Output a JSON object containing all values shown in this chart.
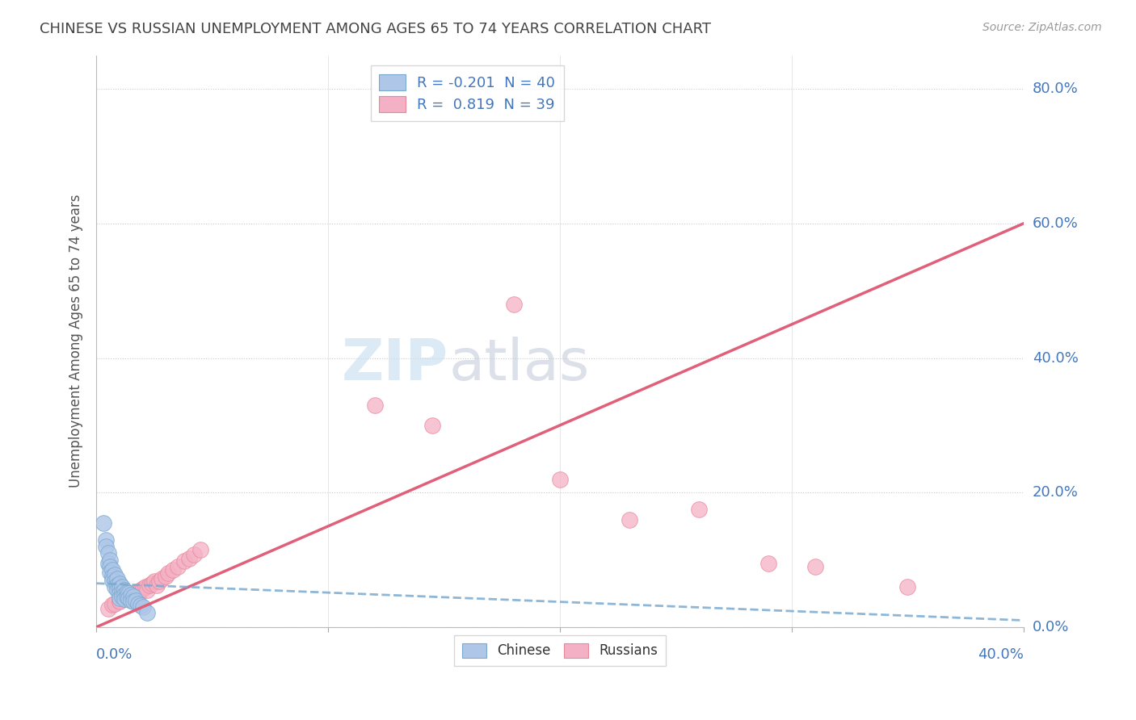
{
  "title": "CHINESE VS RUSSIAN UNEMPLOYMENT AMONG AGES 65 TO 74 YEARS CORRELATION CHART",
  "source": "Source: ZipAtlas.com",
  "ylabel": "Unemployment Among Ages 65 to 74 years",
  "xlim": [
    0.0,
    0.4
  ],
  "ylim": [
    0.0,
    0.85
  ],
  "ytick_labels": [
    "0.0%",
    "20.0%",
    "40.0%",
    "60.0%",
    "80.0%"
  ],
  "ytick_values": [
    0.0,
    0.2,
    0.4,
    0.6,
    0.8
  ],
  "chinese_R": -0.201,
  "chinese_N": 40,
  "russian_R": 0.819,
  "russian_N": 39,
  "chinese_color": "#aec6e8",
  "russian_color": "#f4b0c5",
  "chinese_edge_color": "#7aaad0",
  "russian_edge_color": "#e8889a",
  "chinese_line_color": "#7aaad0",
  "russian_line_color": "#e0607a",
  "title_color": "#444444",
  "label_color": "#4477bb",
  "watermark_zip_color": "#c8ddf0",
  "watermark_atlas_color": "#c8c8d8",
  "chinese_x": [
    0.003,
    0.004,
    0.004,
    0.005,
    0.005,
    0.006,
    0.006,
    0.006,
    0.007,
    0.007,
    0.007,
    0.008,
    0.008,
    0.008,
    0.009,
    0.009,
    0.009,
    0.01,
    0.01,
    0.01,
    0.01,
    0.011,
    0.011,
    0.011,
    0.012,
    0.012,
    0.012,
    0.013,
    0.013,
    0.014,
    0.014,
    0.015,
    0.015,
    0.016,
    0.016,
    0.017,
    0.018,
    0.019,
    0.02,
    0.022
  ],
  "chinese_y": [
    0.155,
    0.13,
    0.12,
    0.11,
    0.095,
    0.1,
    0.09,
    0.082,
    0.085,
    0.075,
    0.07,
    0.078,
    0.068,
    0.06,
    0.072,
    0.062,
    0.055,
    0.065,
    0.058,
    0.05,
    0.043,
    0.06,
    0.052,
    0.045,
    0.055,
    0.048,
    0.042,
    0.052,
    0.045,
    0.05,
    0.043,
    0.048,
    0.04,
    0.045,
    0.038,
    0.04,
    0.035,
    0.032,
    0.03,
    0.022
  ],
  "russian_x": [
    0.005,
    0.007,
    0.008,
    0.01,
    0.01,
    0.012,
    0.013,
    0.014,
    0.015,
    0.016,
    0.017,
    0.018,
    0.019,
    0.02,
    0.021,
    0.022,
    0.023,
    0.024,
    0.025,
    0.026,
    0.027,
    0.028,
    0.03,
    0.031,
    0.033,
    0.035,
    0.038,
    0.04,
    0.042,
    0.045,
    0.12,
    0.145,
    0.18,
    0.2,
    0.23,
    0.26,
    0.29,
    0.31,
    0.35
  ],
  "russian_y": [
    0.028,
    0.033,
    0.035,
    0.04,
    0.038,
    0.042,
    0.045,
    0.042,
    0.048,
    0.05,
    0.052,
    0.048,
    0.055,
    0.058,
    0.06,
    0.055,
    0.062,
    0.065,
    0.068,
    0.062,
    0.068,
    0.072,
    0.075,
    0.08,
    0.085,
    0.09,
    0.098,
    0.102,
    0.108,
    0.115,
    0.33,
    0.3,
    0.48,
    0.22,
    0.16,
    0.175,
    0.095,
    0.09,
    0.06
  ],
  "russian_line_x0": 0.0,
  "russian_line_y0": 0.0,
  "russian_line_x1": 0.4,
  "russian_line_y1": 0.6,
  "chinese_line_x0": 0.0,
  "chinese_line_y0": 0.065,
  "chinese_line_x1": 0.4,
  "chinese_line_y1": 0.01
}
